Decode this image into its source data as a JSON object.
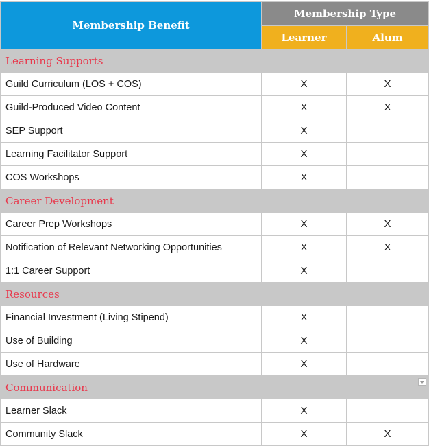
{
  "header": {
    "benefit_label": "Membership Benefit",
    "type_label": "Membership Type",
    "learner_label": "Learner",
    "alum_label": "Alum"
  },
  "colors": {
    "benefit_header_bg": "#0d98dc",
    "type_header_bg": "#8a8a8a",
    "column_header_bg": "#f0b01e",
    "section_bg": "#c8c8c8",
    "section_text": "#e8394d"
  },
  "icons": {
    "section_dropdown": "dropdown-arrow-icon"
  },
  "sections": [
    {
      "title": "Learning Supports",
      "rows": [
        {
          "label": "Guild Curriculum (LOS + COS)",
          "learner": "X",
          "alum": "X"
        },
        {
          "label": "Guild-Produced Video Content",
          "learner": "X",
          "alum": "X"
        },
        {
          "label": "SEP Support",
          "learner": "X",
          "alum": ""
        },
        {
          "label": "Learning Facilitator Support",
          "learner": "X",
          "alum": ""
        },
        {
          "label": "COS Workshops",
          "learner": "X",
          "alum": ""
        }
      ]
    },
    {
      "title": "Career Development",
      "rows": [
        {
          "label": "Career Prep Workshops",
          "learner": "X",
          "alum": "X"
        },
        {
          "label": "Notification of Relevant Networking Opportunities",
          "learner": "X",
          "alum": "X"
        },
        {
          "label": "1:1 Career Support",
          "learner": "X",
          "alum": ""
        }
      ]
    },
    {
      "title": "Resources",
      "rows": [
        {
          "label": "Financial Investment (Living Stipend)",
          "learner": "X",
          "alum": ""
        },
        {
          "label": "Use of Building",
          "learner": "X",
          "alum": ""
        },
        {
          "label": "Use of Hardware",
          "learner": "X",
          "alum": ""
        }
      ]
    },
    {
      "title": "Communication",
      "has_dropdown": true,
      "rows": [
        {
          "label": "Learner Slack",
          "learner": "X",
          "alum": ""
        },
        {
          "label": "Community Slack",
          "learner": "X",
          "alum": "X"
        }
      ]
    }
  ]
}
